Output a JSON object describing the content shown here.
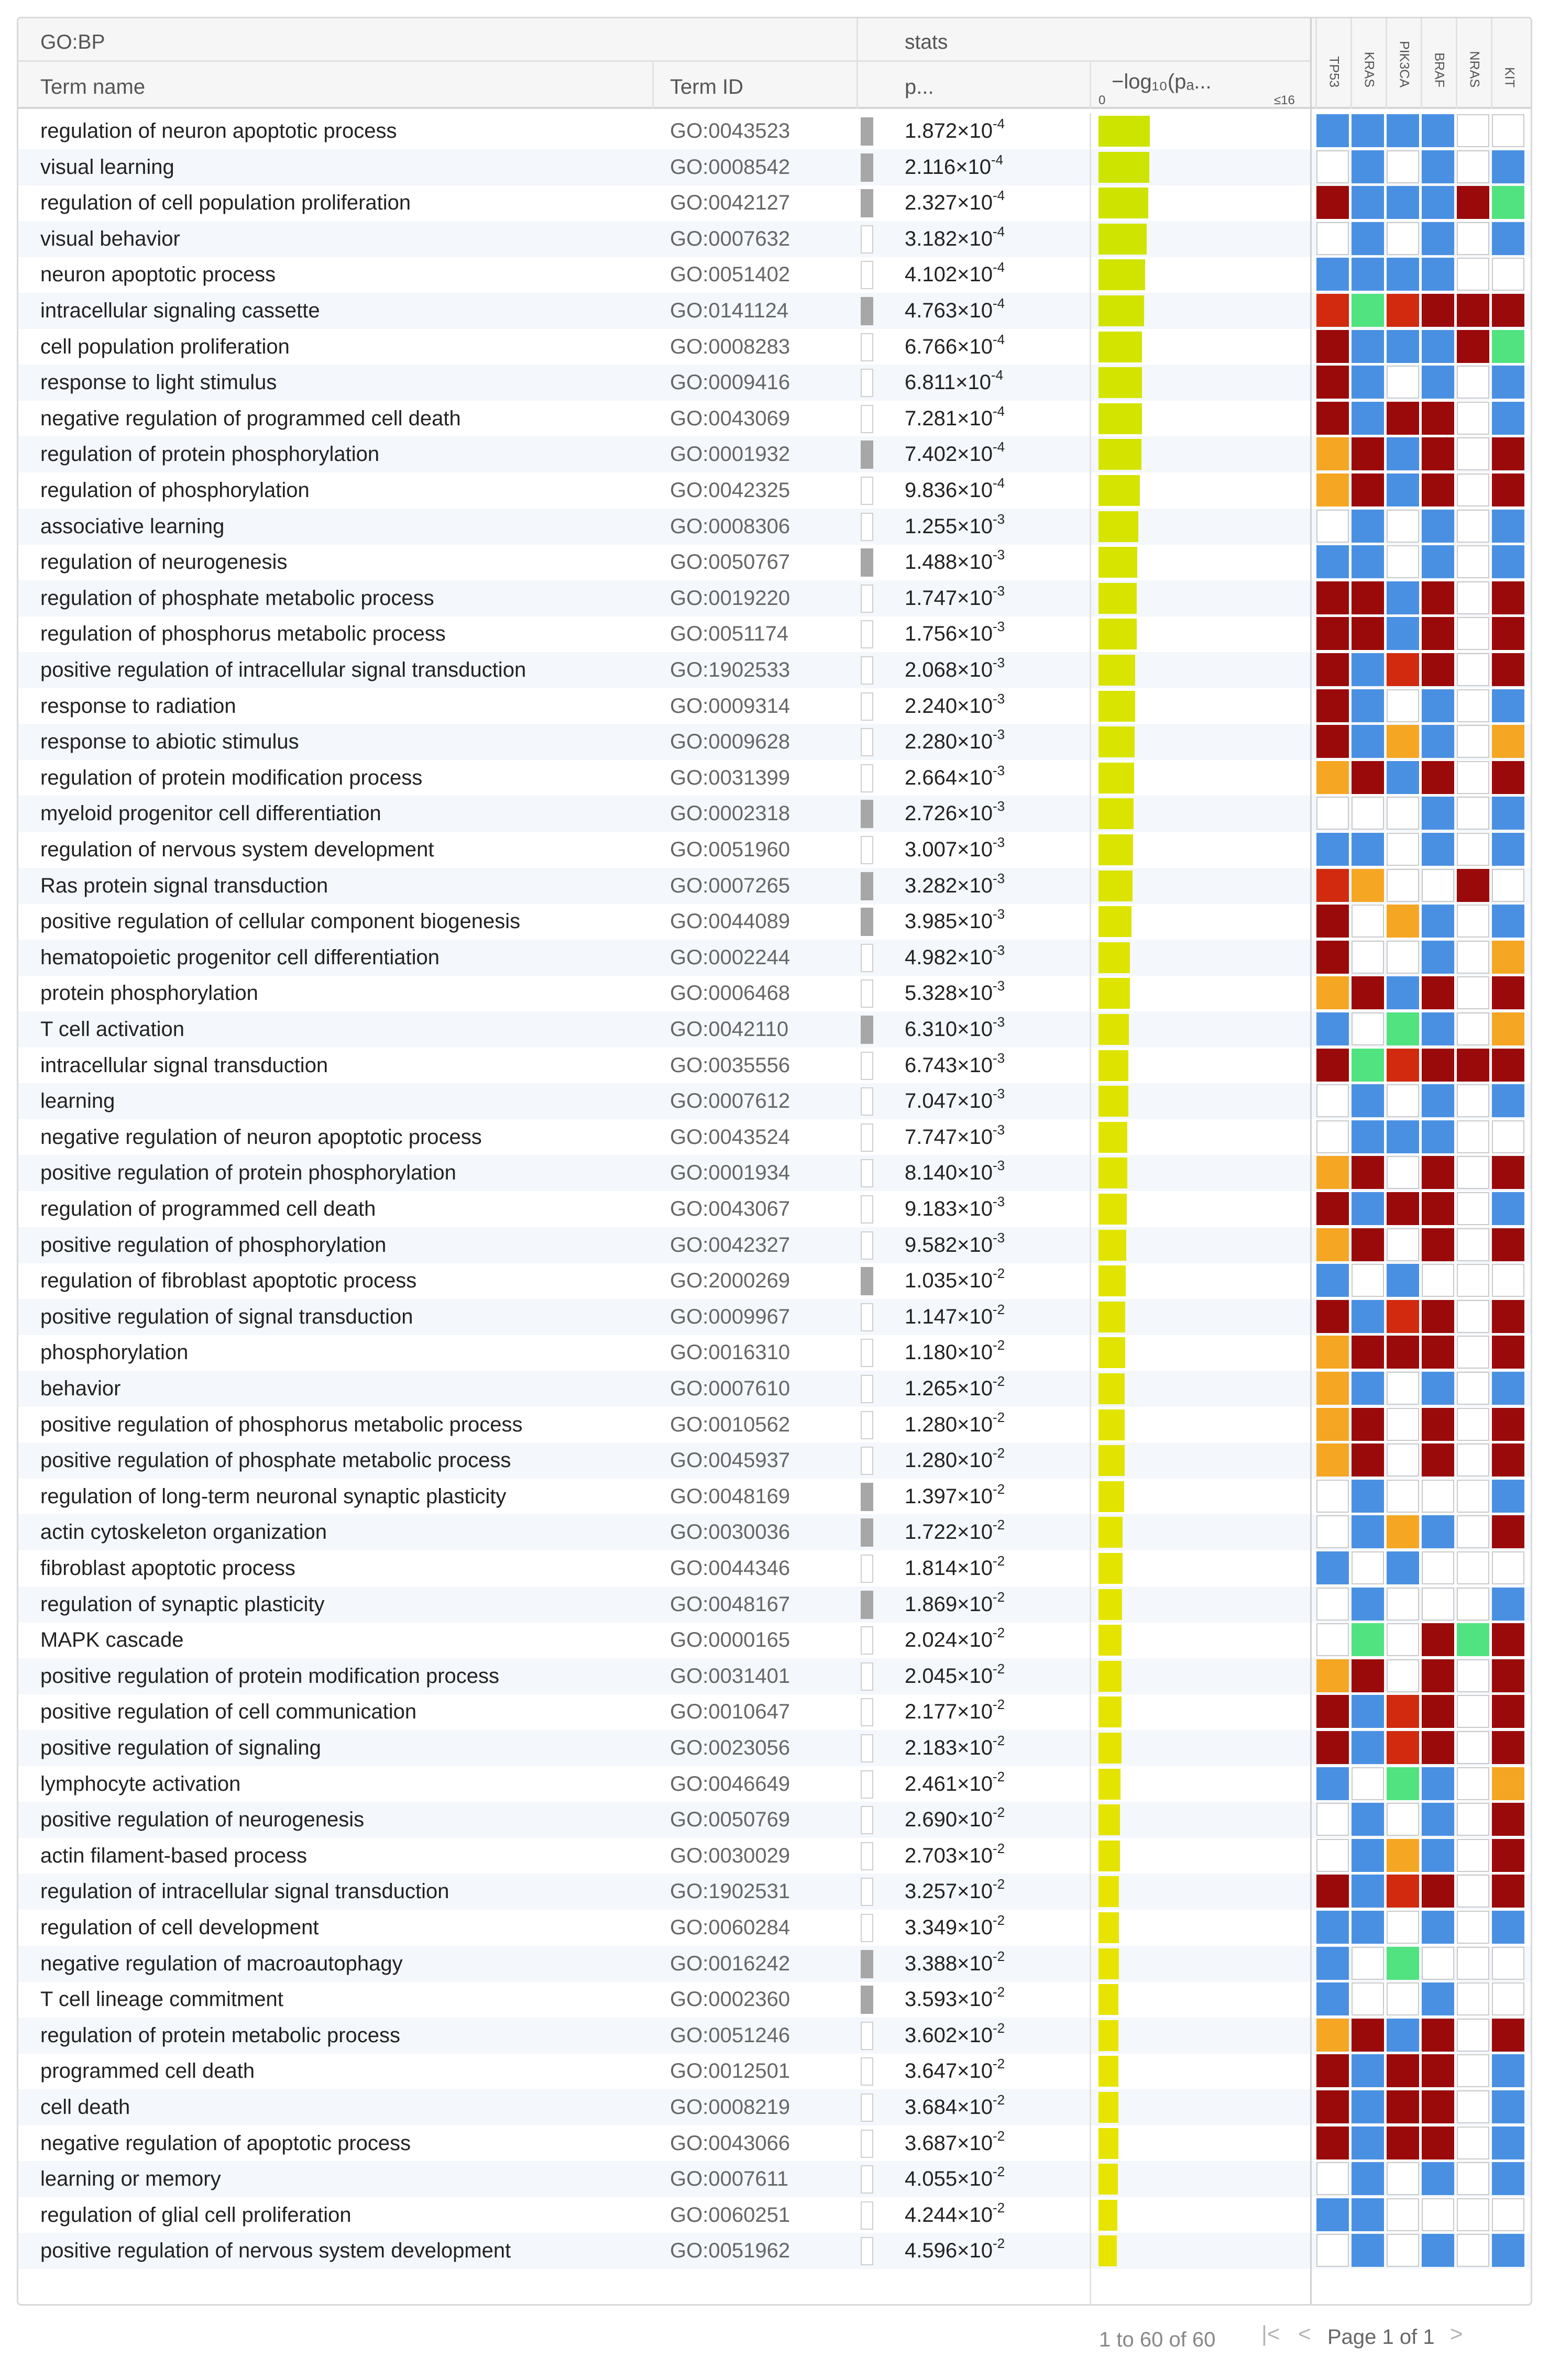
{
  "header": {
    "group_source": "GO:BP",
    "group_stats": "stats",
    "col_term_name": "Term name",
    "col_term_id": "Term ID",
    "col_p": "p...",
    "col_log_label": "−log₁₀(pₐ...",
    "col_log_min": "0",
    "col_log_max": "≤16"
  },
  "genes": [
    "TP53",
    "KRAS",
    "PIK3CA",
    "BRAF",
    "NRAS",
    "KIT"
  ],
  "colors": {
    "blue": "#4a90e2",
    "red": "#9b0a0a",
    "orange": "#f5a623",
    "green": "#50e37f",
    "white": "#ffffff",
    "redorange": "#d12a0e"
  },
  "rows": [
    {
      "name": "regulation of neuron apoptotic process",
      "id": "GO:0043523",
      "p_mant": "1.872",
      "p_exp": "-4",
      "flag": 1,
      "log": 3.73,
      "genes": "BBBBWW"
    },
    {
      "name": "visual learning",
      "id": "GO:0008542",
      "p_mant": "2.116",
      "p_exp": "-4",
      "flag": 1,
      "log": 3.67,
      "genes": "WBWBWB"
    },
    {
      "name": "regulation of cell population proliferation",
      "id": "GO:0042127",
      "p_mant": "2.327",
      "p_exp": "-4",
      "flag": 1,
      "log": 3.63,
      "genes": "RBBBRG"
    },
    {
      "name": "visual behavior",
      "id": "GO:0007632",
      "p_mant": "3.182",
      "p_exp": "-4",
      "flag": 0,
      "log": 3.5,
      "genes": "WBWBWB"
    },
    {
      "name": "neuron apoptotic process",
      "id": "GO:0051402",
      "p_mant": "4.102",
      "p_exp": "-4",
      "flag": 0,
      "log": 3.39,
      "genes": "BBBBWW"
    },
    {
      "name": "intracellular signaling cassette",
      "id": "GO:0141124",
      "p_mant": "4.763",
      "p_exp": "-4",
      "flag": 1,
      "log": 3.32,
      "genes": "XGXRRR"
    },
    {
      "name": "cell population proliferation",
      "id": "GO:0008283",
      "p_mant": "6.766",
      "p_exp": "-4",
      "flag": 0,
      "log": 3.17,
      "genes": "RBBBRG"
    },
    {
      "name": "response to light stimulus",
      "id": "GO:0009416",
      "p_mant": "6.811",
      "p_exp": "-4",
      "flag": 0,
      "log": 3.17,
      "genes": "RBWBWB"
    },
    {
      "name": "negative regulation of programmed cell death",
      "id": "GO:0043069",
      "p_mant": "7.281",
      "p_exp": "-4",
      "flag": 0,
      "log": 3.14,
      "genes": "RBRRWB"
    },
    {
      "name": "regulation of protein phosphorylation",
      "id": "GO:0001932",
      "p_mant": "7.402",
      "p_exp": "-4",
      "flag": 1,
      "log": 3.13,
      "genes": "ORBRWR"
    },
    {
      "name": "regulation of phosphorylation",
      "id": "GO:0042325",
      "p_mant": "9.836",
      "p_exp": "-4",
      "flag": 0,
      "log": 3.01,
      "genes": "ORBRWR"
    },
    {
      "name": "associative learning",
      "id": "GO:0008306",
      "p_mant": "1.255",
      "p_exp": "-3",
      "flag": 0,
      "log": 2.9,
      "genes": "WBWBWB"
    },
    {
      "name": "regulation of neurogenesis",
      "id": "GO:0050767",
      "p_mant": "1.488",
      "p_exp": "-3",
      "flag": 1,
      "log": 2.83,
      "genes": "BBWBWB"
    },
    {
      "name": "regulation of phosphate metabolic process",
      "id": "GO:0019220",
      "p_mant": "1.747",
      "p_exp": "-3",
      "flag": 0,
      "log": 2.76,
      "genes": "RRBRWR"
    },
    {
      "name": "regulation of phosphorus metabolic process",
      "id": "GO:0051174",
      "p_mant": "1.756",
      "p_exp": "-3",
      "flag": 0,
      "log": 2.76,
      "genes": "RRBRWR"
    },
    {
      "name": "positive regulation of intracellular signal transduction",
      "id": "GO:1902533",
      "p_mant": "2.068",
      "p_exp": "-3",
      "flag": 0,
      "log": 2.68,
      "genes": "RBXRWR"
    },
    {
      "name": "response to radiation",
      "id": "GO:0009314",
      "p_mant": "2.240",
      "p_exp": "-3",
      "flag": 0,
      "log": 2.65,
      "genes": "RBWBWB"
    },
    {
      "name": "response to abiotic stimulus",
      "id": "GO:0009628",
      "p_mant": "2.280",
      "p_exp": "-3",
      "flag": 0,
      "log": 2.64,
      "genes": "RBOBWO"
    },
    {
      "name": "regulation of protein modification process",
      "id": "GO:0031399",
      "p_mant": "2.664",
      "p_exp": "-3",
      "flag": 0,
      "log": 2.57,
      "genes": "ORBRWR"
    },
    {
      "name": "myeloid progenitor cell differentiation",
      "id": "GO:0002318",
      "p_mant": "2.726",
      "p_exp": "-3",
      "flag": 1,
      "log": 2.56,
      "genes": "WWWBWB"
    },
    {
      "name": "regulation of nervous system development",
      "id": "GO:0051960",
      "p_mant": "3.007",
      "p_exp": "-3",
      "flag": 0,
      "log": 2.52,
      "genes": "BBWBWB"
    },
    {
      "name": "Ras protein signal transduction",
      "id": "GO:0007265",
      "p_mant": "3.282",
      "p_exp": "-3",
      "flag": 1,
      "log": 2.48,
      "genes": "XOWWRW"
    },
    {
      "name": "positive regulation of cellular component biogenesis",
      "id": "GO:0044089",
      "p_mant": "3.985",
      "p_exp": "-3",
      "flag": 1,
      "log": 2.4,
      "genes": "RWOBWB"
    },
    {
      "name": "hematopoietic progenitor cell differentiation",
      "id": "GO:0002244",
      "p_mant": "4.982",
      "p_exp": "-3",
      "flag": 0,
      "log": 2.3,
      "genes": "RWWBWO"
    },
    {
      "name": "protein phosphorylation",
      "id": "GO:0006468",
      "p_mant": "5.328",
      "p_exp": "-3",
      "flag": 0,
      "log": 2.27,
      "genes": "ORBRWR"
    },
    {
      "name": "T cell activation",
      "id": "GO:0042110",
      "p_mant": "6.310",
      "p_exp": "-3",
      "flag": 1,
      "log": 2.2,
      "genes": "BWGBWO"
    },
    {
      "name": "intracellular signal transduction",
      "id": "GO:0035556",
      "p_mant": "6.743",
      "p_exp": "-3",
      "flag": 0,
      "log": 2.17,
      "genes": "RGXRRR"
    },
    {
      "name": "learning",
      "id": "GO:0007612",
      "p_mant": "7.047",
      "p_exp": "-3",
      "flag": 0,
      "log": 2.15,
      "genes": "WBWBWB"
    },
    {
      "name": "negative regulation of neuron apoptotic process",
      "id": "GO:0043524",
      "p_mant": "7.747",
      "p_exp": "-3",
      "flag": 0,
      "log": 2.11,
      "genes": "WBBBWW"
    },
    {
      "name": "positive regulation of protein phosphorylation",
      "id": "GO:0001934",
      "p_mant": "8.140",
      "p_exp": "-3",
      "flag": 0,
      "log": 2.09,
      "genes": "ORWRWR"
    },
    {
      "name": "regulation of programmed cell death",
      "id": "GO:0043067",
      "p_mant": "9.183",
      "p_exp": "-3",
      "flag": 0,
      "log": 2.04,
      "genes": "RBRRWB"
    },
    {
      "name": "positive regulation of phosphorylation",
      "id": "GO:0042327",
      "p_mant": "9.582",
      "p_exp": "-3",
      "flag": 0,
      "log": 2.02,
      "genes": "ORWRWR"
    },
    {
      "name": "regulation of fibroblast apoptotic process",
      "id": "GO:2000269",
      "p_mant": "1.035",
      "p_exp": "-2",
      "flag": 1,
      "log": 1.99,
      "genes": "BWBWWW"
    },
    {
      "name": "positive regulation of signal transduction",
      "id": "GO:0009967",
      "p_mant": "1.147",
      "p_exp": "-2",
      "flag": 0,
      "log": 1.94,
      "genes": "RBXRWR"
    },
    {
      "name": "phosphorylation",
      "id": "GO:0016310",
      "p_mant": "1.180",
      "p_exp": "-2",
      "flag": 0,
      "log": 1.93,
      "genes": "ORRRWR"
    },
    {
      "name": "behavior",
      "id": "GO:0007610",
      "p_mant": "1.265",
      "p_exp": "-2",
      "flag": 0,
      "log": 1.9,
      "genes": "OBWBWB"
    },
    {
      "name": "positive regulation of phosphorus metabolic process",
      "id": "GO:0010562",
      "p_mant": "1.280",
      "p_exp": "-2",
      "flag": 0,
      "log": 1.89,
      "genes": "ORWRWR"
    },
    {
      "name": "positive regulation of phosphate metabolic process",
      "id": "GO:0045937",
      "p_mant": "1.280",
      "p_exp": "-2",
      "flag": 0,
      "log": 1.89,
      "genes": "ORWRWR"
    },
    {
      "name": "regulation of long-term neuronal synaptic plasticity",
      "id": "GO:0048169",
      "p_mant": "1.397",
      "p_exp": "-2",
      "flag": 1,
      "log": 1.85,
      "genes": "WBWWWB"
    },
    {
      "name": "actin cytoskeleton organization",
      "id": "GO:0030036",
      "p_mant": "1.722",
      "p_exp": "-2",
      "flag": 1,
      "log": 1.76,
      "genes": "WBOBWR"
    },
    {
      "name": "fibroblast apoptotic process",
      "id": "GO:0044346",
      "p_mant": "1.814",
      "p_exp": "-2",
      "flag": 0,
      "log": 1.74,
      "genes": "BWBWWW"
    },
    {
      "name": "regulation of synaptic plasticity",
      "id": "GO:0048167",
      "p_mant": "1.869",
      "p_exp": "-2",
      "flag": 1,
      "log": 1.73,
      "genes": "WBWWWB"
    },
    {
      "name": "MAPK cascade",
      "id": "GO:0000165",
      "p_mant": "2.024",
      "p_exp": "-2",
      "flag": 0,
      "log": 1.69,
      "genes": "WGWRGR"
    },
    {
      "name": "positive regulation of protein modification process",
      "id": "GO:0031401",
      "p_mant": "2.045",
      "p_exp": "-2",
      "flag": 0,
      "log": 1.69,
      "genes": "ORWRWR"
    },
    {
      "name": "positive regulation of cell communication",
      "id": "GO:0010647",
      "p_mant": "2.177",
      "p_exp": "-2",
      "flag": 0,
      "log": 1.66,
      "genes": "RBXRWR"
    },
    {
      "name": "positive regulation of signaling",
      "id": "GO:0023056",
      "p_mant": "2.183",
      "p_exp": "-2",
      "flag": 0,
      "log": 1.66,
      "genes": "RBXRWR"
    },
    {
      "name": "lymphocyte activation",
      "id": "GO:0046649",
      "p_mant": "2.461",
      "p_exp": "-2",
      "flag": 0,
      "log": 1.61,
      "genes": "BWGBWO"
    },
    {
      "name": "positive regulation of neurogenesis",
      "id": "GO:0050769",
      "p_mant": "2.690",
      "p_exp": "-2",
      "flag": 0,
      "log": 1.57,
      "genes": "WBWBWR"
    },
    {
      "name": "actin filament-based process",
      "id": "GO:0030029",
      "p_mant": "2.703",
      "p_exp": "-2",
      "flag": 0,
      "log": 1.57,
      "genes": "WBOBWR"
    },
    {
      "name": "regulation of intracellular signal transduction",
      "id": "GO:1902531",
      "p_mant": "3.257",
      "p_exp": "-2",
      "flag": 0,
      "log": 1.49,
      "genes": "RBXRWR"
    },
    {
      "name": "regulation of cell development",
      "id": "GO:0060284",
      "p_mant": "3.349",
      "p_exp": "-2",
      "flag": 0,
      "log": 1.48,
      "genes": "BBWBWB"
    },
    {
      "name": "negative regulation of macroautophagy",
      "id": "GO:0016242",
      "p_mant": "3.388",
      "p_exp": "-2",
      "flag": 1,
      "log": 1.47,
      "genes": "BWGWWW"
    },
    {
      "name": "T cell lineage commitment",
      "id": "GO:0002360",
      "p_mant": "3.593",
      "p_exp": "-2",
      "flag": 1,
      "log": 1.44,
      "genes": "BWWBWW"
    },
    {
      "name": "regulation of protein metabolic process",
      "id": "GO:0051246",
      "p_mant": "3.602",
      "p_exp": "-2",
      "flag": 0,
      "log": 1.44,
      "genes": "ORBRWR"
    },
    {
      "name": "programmed cell death",
      "id": "GO:0012501",
      "p_mant": "3.647",
      "p_exp": "-2",
      "flag": 0,
      "log": 1.44,
      "genes": "RBRRWB"
    },
    {
      "name": "cell death",
      "id": "GO:0008219",
      "p_mant": "3.684",
      "p_exp": "-2",
      "flag": 0,
      "log": 1.43,
      "genes": "RBRRWB"
    },
    {
      "name": "negative regulation of apoptotic process",
      "id": "GO:0043066",
      "p_mant": "3.687",
      "p_exp": "-2",
      "flag": 0,
      "log": 1.43,
      "genes": "RBRRWB"
    },
    {
      "name": "learning or memory",
      "id": "GO:0007611",
      "p_mant": "4.055",
      "p_exp": "-2",
      "flag": 0,
      "log": 1.39,
      "genes": "WBWBWB"
    },
    {
      "name": "regulation of glial cell proliferation",
      "id": "GO:0060251",
      "p_mant": "4.244",
      "p_exp": "-2",
      "flag": 0,
      "log": 1.37,
      "genes": "BBWWWW"
    },
    {
      "name": "positive regulation of nervous system development",
      "id": "GO:0051962",
      "p_mant": "4.596",
      "p_exp": "-2",
      "flag": 0,
      "log": 1.34,
      "genes": "WBWBWB"
    }
  ],
  "footer": {
    "count_text": "1 to 60 of 60",
    "page_text": "Page 1 of 1"
  }
}
